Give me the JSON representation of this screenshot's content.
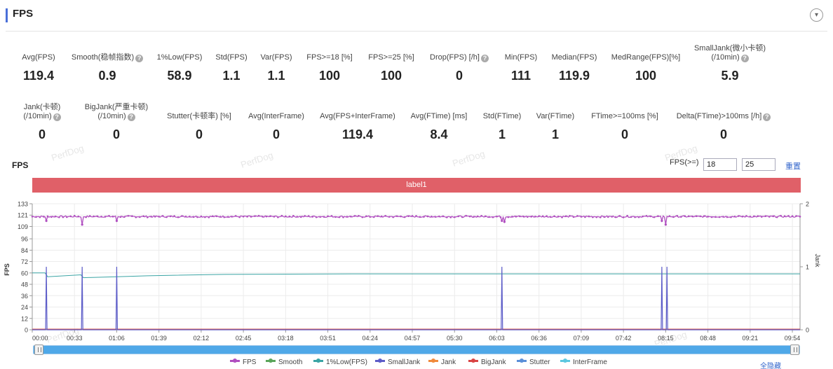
{
  "header": {
    "title": "FPS",
    "collapse_icon": "chevron-down-icon"
  },
  "stats_row1": [
    {
      "label": "Avg(FPS)",
      "value": "119.4",
      "help": false
    },
    {
      "label": "Smooth(稳帧指数)",
      "value": "0.9",
      "help": true
    },
    {
      "label": "1%Low(FPS)",
      "value": "58.9",
      "help": false
    },
    {
      "label": "Std(FPS)",
      "value": "1.1",
      "help": false
    },
    {
      "label": "Var(FPS)",
      "value": "1.1",
      "help": false
    },
    {
      "label": "FPS>=18 [%]",
      "value": "100",
      "help": false
    },
    {
      "label": "FPS>=25 [%]",
      "value": "100",
      "help": false
    },
    {
      "label": "Drop(FPS) [/h]",
      "value": "0",
      "help": true
    },
    {
      "label": "Min(FPS)",
      "value": "111",
      "help": false
    },
    {
      "label": "Median(FPS)",
      "value": "119.9",
      "help": false
    },
    {
      "label": "MedRange(FPS)[%]",
      "value": "100",
      "help": false
    },
    {
      "label": "SmallJank(微小卡顿)",
      "label2": "(/10min)",
      "value": "5.9",
      "help": true
    }
  ],
  "stats_row2": [
    {
      "label": "Jank(卡顿)",
      "label2": "(/10min)",
      "value": "0",
      "help": true
    },
    {
      "label": "BigJank(严重卡顿)",
      "label2": "(/10min)",
      "value": "0",
      "help": true
    },
    {
      "label": "Stutter(卡顿率) [%]",
      "value": "0",
      "help": false
    },
    {
      "label": "Avg(InterFrame)",
      "value": "0",
      "help": false
    },
    {
      "label": "Avg(FPS+InterFrame)",
      "value": "119.4",
      "help": false
    },
    {
      "label": "Avg(FTime) [ms]",
      "value": "8.4",
      "help": false
    },
    {
      "label": "Std(FTime)",
      "value": "1",
      "help": false
    },
    {
      "label": "Var(FTime)",
      "value": "1",
      "help": false
    },
    {
      "label": "FTime>=100ms [%]",
      "value": "0",
      "help": false
    },
    {
      "label": "Delta(FTime)>100ms [/h]",
      "value": "0",
      "help": true
    }
  ],
  "chart_header": {
    "title": "FPS",
    "threshold_label": "FPS(>=)",
    "threshold1": "18",
    "threshold2": "25",
    "reset_label": "重置"
  },
  "label_bar": "label1",
  "chart_data": {
    "type": "line",
    "ylabel": "FPS",
    "y2label": "Jank",
    "ylim": [
      0,
      133
    ],
    "y_ticks": [
      "0",
      "12",
      "24",
      "36",
      "48",
      "60",
      "72",
      "84",
      "96",
      "109",
      "121",
      "133"
    ],
    "y2lim": [
      0,
      2
    ],
    "y2_ticks": [
      "0",
      "1",
      "2"
    ],
    "xlim_seconds": [
      0,
      600
    ],
    "x_ticks": [
      "00:00",
      "00:33",
      "01:06",
      "01:39",
      "02:12",
      "02:45",
      "03:18",
      "03:51",
      "04:24",
      "04:57",
      "05:30",
      "06:03",
      "06:36",
      "07:09",
      "07:42",
      "08:15",
      "08:48",
      "09:21",
      "09:54"
    ],
    "grid": true,
    "legend_position": "bottom",
    "series": [
      {
        "name": "FPS",
        "color": "#b04fc0",
        "axis": "left",
        "base": 119.5,
        "dips": [
          [
            11,
            115
          ],
          [
            39,
            111
          ],
          [
            66,
            115
          ],
          [
            367,
            115
          ],
          [
            369,
            114
          ],
          [
            492,
            115
          ],
          [
            495,
            111
          ]
        ]
      },
      {
        "name": "Smooth",
        "color": "#5aa55a",
        "axis": "left",
        "value": 0
      },
      {
        "name": "1%Low(FPS)",
        "color": "#3aa4a4",
        "axis": "left",
        "points": [
          [
            0,
            60
          ],
          [
            10,
            60
          ],
          [
            12,
            56
          ],
          [
            38,
            58
          ],
          [
            40,
            55
          ],
          [
            66,
            56
          ],
          [
            90,
            57
          ],
          [
            150,
            58.5
          ],
          [
            250,
            59
          ],
          [
            600,
            59
          ]
        ]
      },
      {
        "name": "SmallJank",
        "color": "#5c5cc8",
        "axis": "right",
        "spikes_seconds": [
          11,
          39,
          66,
          367,
          492,
          496
        ]
      },
      {
        "name": "Jank",
        "color": "#f08a3c",
        "axis": "right",
        "value": 0
      },
      {
        "name": "BigJank",
        "color": "#d94444",
        "axis": "right",
        "value": 0
      },
      {
        "name": "Stutter",
        "color": "#5a8fd8",
        "axis": "left",
        "value": 0
      },
      {
        "name": "InterFrame",
        "color": "#5cc8e0",
        "axis": "left",
        "value": 0
      }
    ]
  },
  "legend_hide_all": "全隐藏",
  "watermark": "PerfDog"
}
